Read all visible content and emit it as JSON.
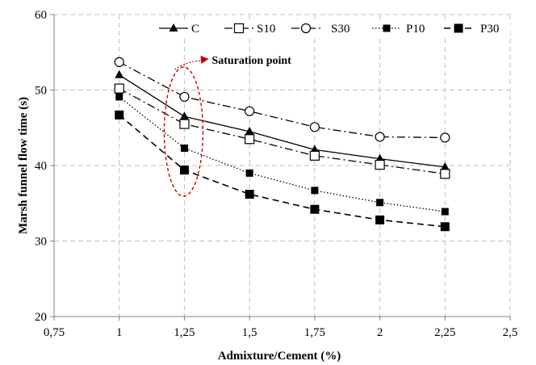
{
  "chart_data": {
    "type": "line",
    "title": "",
    "xlabel": "Admixture/Cement (%)",
    "ylabel": "Marsh funnel flow time (s)",
    "xlim": [
      0.75,
      2.5
    ],
    "ylim": [
      20,
      60
    ],
    "x_ticks": [
      0.75,
      1,
      1.25,
      1.5,
      1.75,
      2,
      2.25,
      2.5
    ],
    "x_tick_labels": [
      "0,75",
      "1",
      "1,25",
      "1,5",
      "1,75",
      "2",
      "2,25",
      "2,5"
    ],
    "y_ticks": [
      20,
      30,
      40,
      50,
      60
    ],
    "y_tick_labels": [
      "20",
      "30",
      "40",
      "50",
      "60"
    ],
    "grid": true,
    "legend_position": "top",
    "x": [
      1,
      1.25,
      1.5,
      1.75,
      2,
      2.25
    ],
    "series": [
      {
        "name": "C",
        "values": [
          52.0,
          46.5,
          44.5,
          42.1,
          40.9,
          39.8
        ],
        "marker": "filled-triangle",
        "line": "solid"
      },
      {
        "name": "S10",
        "values": [
          50.2,
          45.5,
          43.5,
          41.3,
          40.1,
          38.9
        ],
        "marker": "open-square",
        "line": "dash-dot"
      },
      {
        "name": "S30",
        "values": [
          53.7,
          49.1,
          47.2,
          45.1,
          43.8,
          43.7
        ],
        "marker": "open-circle",
        "line": "dash-dot"
      },
      {
        "name": "P10",
        "values": [
          49.1,
          42.3,
          39.0,
          36.7,
          35.1,
          33.9
        ],
        "marker": "filled-square-small",
        "line": "dotted"
      },
      {
        "name": "P30",
        "values": [
          46.7,
          39.4,
          36.2,
          34.2,
          32.8,
          31.9
        ],
        "marker": "filled-square",
        "line": "dashed"
      }
    ],
    "annotation": {
      "text": "Saturation point",
      "x": 1.25,
      "color": "#c00000"
    }
  }
}
